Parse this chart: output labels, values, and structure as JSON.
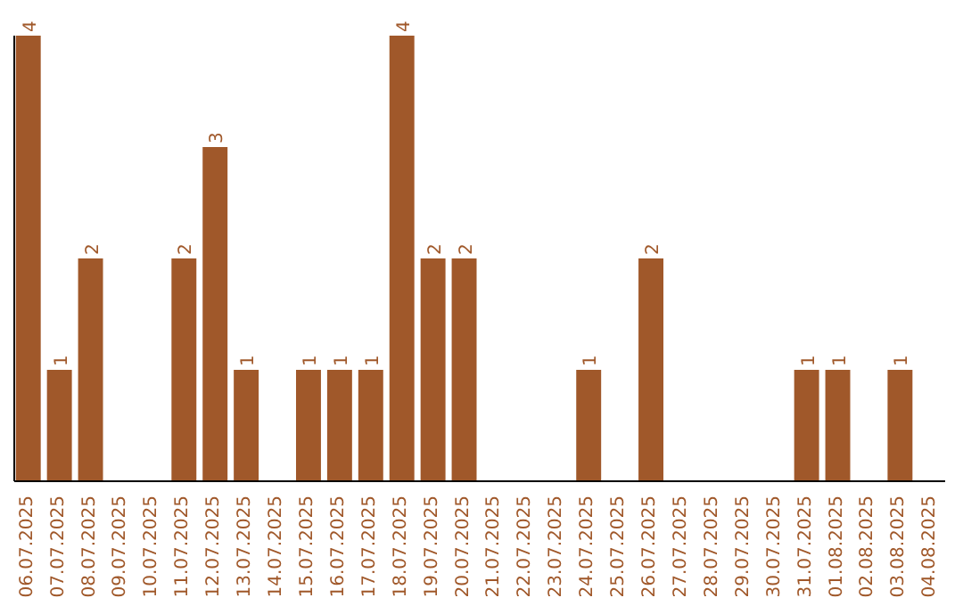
{
  "chart_data": {
    "type": "bar",
    "categories": [
      "06.07.2025",
      "07.07.2025",
      "08.07.2025",
      "09.07.2025",
      "10.07.2025",
      "11.07.2025",
      "12.07.2025",
      "13.07.2025",
      "14.07.2025",
      "15.07.2025",
      "16.07.2025",
      "17.07.2025",
      "18.07.2025",
      "19.07.2025",
      "20.07.2025",
      "21.07.2025",
      "22.07.2025",
      "23.07.2025",
      "24.07.2025",
      "25.07.2025",
      "26.07.2025",
      "27.07.2025",
      "28.07.2025",
      "29.07.2025",
      "30.07.2025",
      "31.07.2025",
      "01.08.2025",
      "02.08.2025",
      "03.08.2025",
      "04.08.2025"
    ],
    "values": [
      4,
      1,
      2,
      0,
      0,
      2,
      3,
      1,
      0,
      1,
      1,
      1,
      4,
      2,
      2,
      0,
      0,
      0,
      1,
      0,
      2,
      0,
      0,
      0,
      0,
      1,
      1,
      0,
      1,
      0
    ],
    "value_labels": [
      "4",
      "1",
      "2",
      null,
      null,
      "2",
      "3",
      "1",
      null,
      "1",
      "1",
      "1",
      "4",
      "2",
      "2",
      null,
      null,
      null,
      "1",
      null,
      "2",
      null,
      null,
      null,
      null,
      "1",
      "1",
      null,
      "1",
      null
    ],
    "color": "#a0582a",
    "tick_labels": "x"
  }
}
